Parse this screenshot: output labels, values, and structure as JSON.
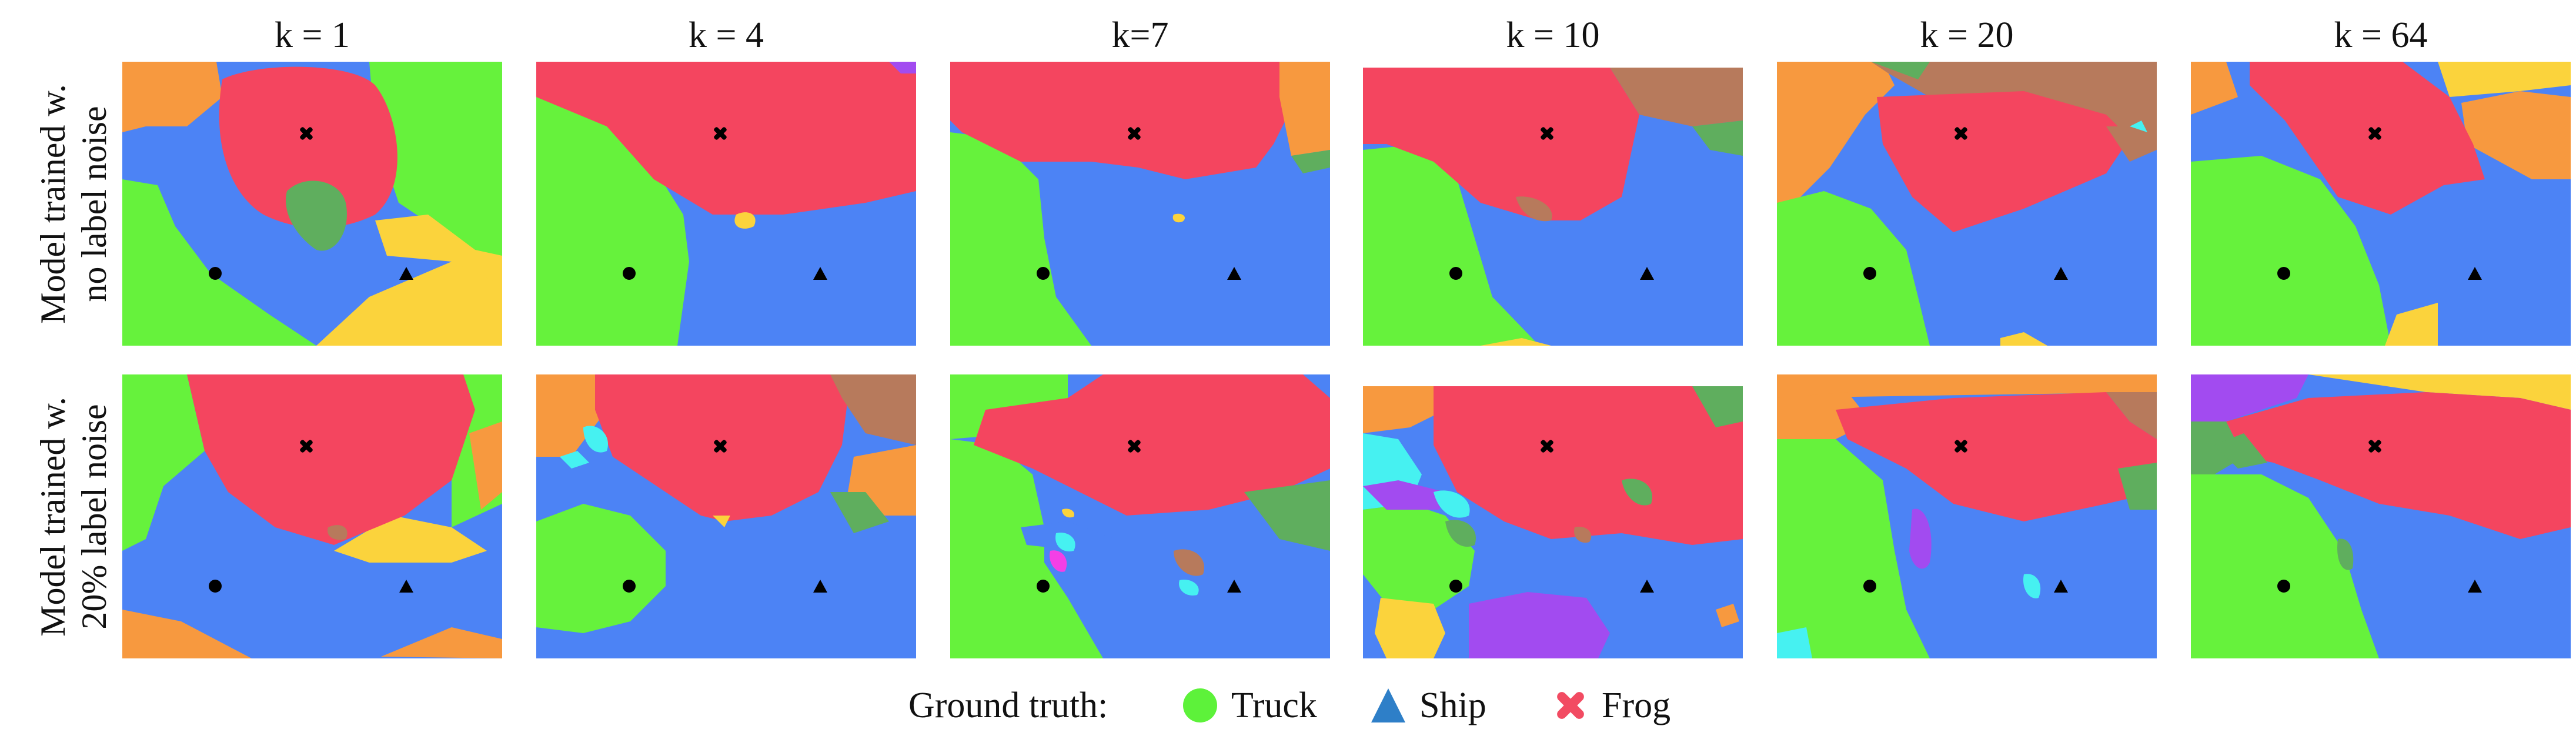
{
  "columns": [
    "k = 1",
    "k = 4",
    "k=7",
    "k = 10",
    "k = 20",
    "k = 64"
  ],
  "rows": [
    {
      "line1": "Model trained w.",
      "line2": "no label noise"
    },
    {
      "line1": "Model trained w.",
      "line2": "20%  label noise"
    }
  ],
  "legend": {
    "title": "Ground truth:",
    "items": [
      {
        "label": "Truck",
        "marker": "circle",
        "color": "#5df23a"
      },
      {
        "label": "Ship",
        "marker": "triangle",
        "color": "#2e7fc8"
      },
      {
        "label": "Frog",
        "marker": "cross",
        "color": "#f24b62"
      }
    ]
  },
  "region_colors": {
    "truck": "#66f23c",
    "ship": "#4c83f5",
    "frog": "#f4455f",
    "orange": "#f7993f",
    "yellow": "#fbd33c",
    "brown": "#b77a5c",
    "dark_green": "#5fae5e",
    "cyan": "#46f1f1",
    "purple": "#a24bf0",
    "pink": "#f43fe6"
  },
  "markers": {
    "truck": "circle",
    "ship": "triangle",
    "frog": "cross",
    "color": "#000000"
  }
}
